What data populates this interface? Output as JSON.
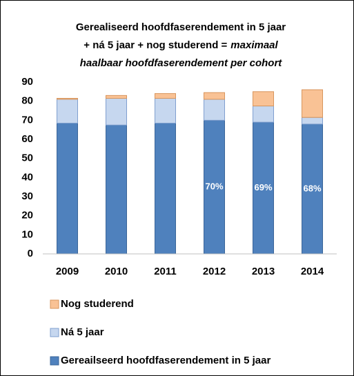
{
  "chart_data": {
    "type": "stacked-bar",
    "title": {
      "line1": "Gerealiseerd hoofdfaserendement in 5 jaar",
      "line2": "+ ná 5 jaar + nog studerend =",
      "line2_italic": "maximaal",
      "line3": "haalbaar hoofdfaserendement per cohort"
    },
    "categories": [
      "2009",
      "2010",
      "2011",
      "2012",
      "2013",
      "2014"
    ],
    "series": [
      {
        "name": "Gereailseerd hoofdfaserendement in 5 jaar",
        "color": "#4f81bd",
        "values": [
          68.5,
          67.5,
          68.5,
          70,
          69,
          68
        ],
        "value_labels": [
          null,
          null,
          null,
          "70%",
          "69%",
          "68%"
        ]
      },
      {
        "name": "Ná 5 jaar",
        "color": "#c6d7ef",
        "values": [
          12.5,
          14,
          13,
          11,
          8.5,
          3.5
        ]
      },
      {
        "name": "Nog studerend",
        "color": "#f9c295",
        "values": [
          0.5,
          1.5,
          2.5,
          3.5,
          7.5,
          14.5
        ]
      }
    ],
    "ylim": [
      0,
      90
    ],
    "yticks": [
      0,
      10,
      20,
      30,
      40,
      50,
      60,
      70,
      80,
      90
    ],
    "grid": false,
    "legend": "bottom"
  }
}
